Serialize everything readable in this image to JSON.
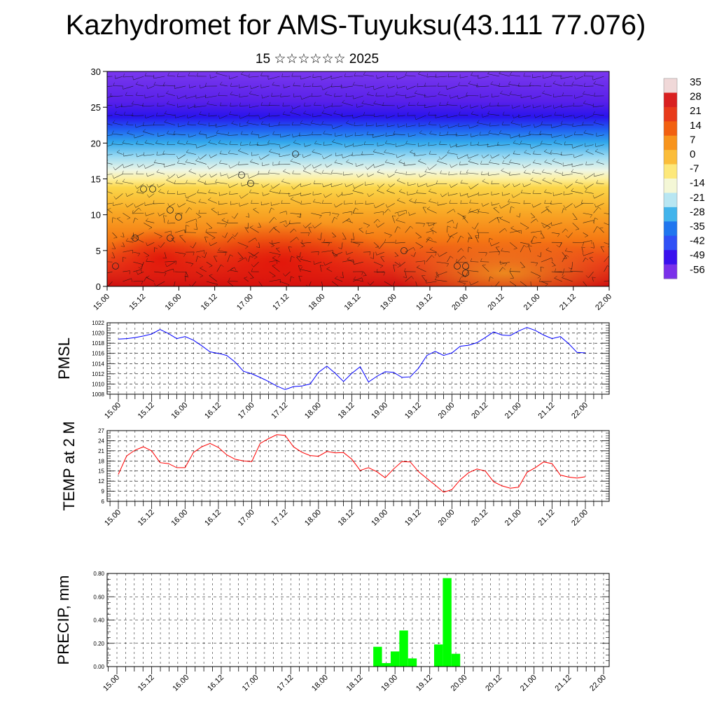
{
  "title": "Kazhydromet for AMS-Tuyuksu(43.111 77.076)",
  "subtitle": "15 ☆☆☆☆☆☆ 2025",
  "chart_data": [
    {
      "type": "heatmap",
      "name": "vertical-profile",
      "x_ticks": [
        "15.00",
        "15.12",
        "16.00",
        "16.12",
        "17.00",
        "17.12",
        "18.00",
        "18.12",
        "19.00",
        "19.12",
        "20.00",
        "20.12",
        "21.00",
        "21.12",
        "22.00"
      ],
      "ylim": [
        0,
        30
      ],
      "y_ticks": [
        "0",
        "5",
        "10",
        "15",
        "20",
        "25",
        "30"
      ],
      "colorbar": {
        "labels": [
          "35",
          "28",
          "21",
          "14",
          "7",
          "0",
          "-7",
          "-14",
          "-21",
          "-28",
          "-35",
          "-42",
          "-49",
          "-56"
        ],
        "colors": [
          "#f0d8d8",
          "#d92020",
          "#e83a1a",
          "#f26010",
          "#f8941c",
          "#fbbd3a",
          "#fde87a",
          "#f4f7d6",
          "#b8e6f2",
          "#42b4ec",
          "#2076ef",
          "#3050f6",
          "#3a10ee",
          "#7a30ea"
        ]
      }
    },
    {
      "type": "line",
      "name": "pmsl",
      "ylabel": "PMSL",
      "ylim": [
        1008,
        1022
      ],
      "y_ticks": [
        "1022",
        "1020",
        "1018",
        "1016",
        "1014",
        "1012",
        "1010",
        "1008"
      ],
      "x_ticks": [
        "15.00",
        "15.12",
        "16.00",
        "16.12",
        "17.00",
        "17.12",
        "18.00",
        "18.12",
        "19.00",
        "19.12",
        "20.00",
        "20.12",
        "21.00",
        "21.12",
        "22.00"
      ],
      "color": "#0000ff",
      "values": [
        1018.8,
        1018.9,
        1019.1,
        1019.4,
        1019.8,
        1020.7,
        1019.9,
        1018.9,
        1019.3,
        1018.6,
        1017.5,
        1016.3,
        1016.0,
        1015.6,
        1014.3,
        1012.5,
        1012.0,
        1011.3,
        1010.5,
        1009.6,
        1008.9,
        1009.5,
        1009.6,
        1010.0,
        1012.3,
        1013.5,
        1012.1,
        1010.5,
        1012.1,
        1013.4,
        1010.4,
        1011.5,
        1012.4,
        1012.3,
        1011.3,
        1011.4,
        1013.1,
        1015.6,
        1016.4,
        1015.6,
        1016.1,
        1017.4,
        1017.6,
        1018.1,
        1019.1,
        1020.2,
        1019.6,
        1019.5,
        1020.4,
        1021.1,
        1020.5,
        1019.6,
        1018.9,
        1019.3,
        1017.9,
        1016.2,
        1016.1
      ]
    },
    {
      "type": "line",
      "name": "temp-2m",
      "ylabel": "TEMP at 2 M",
      "ylim": [
        6,
        27
      ],
      "y_ticks": [
        "27",
        "24",
        "21",
        "18",
        "15",
        "12",
        "9",
        "6"
      ],
      "x_ticks": [
        "15.00",
        "15.12",
        "16.00",
        "16.12",
        "17.00",
        "17.12",
        "18.00",
        "18.12",
        "19.00",
        "19.12",
        "20.00",
        "20.12",
        "21.00",
        "21.12",
        "22.00"
      ],
      "color": "#ff0000",
      "values": [
        14.0,
        19.5,
        21.2,
        22.2,
        21.0,
        17.5,
        17.2,
        16.0,
        16.0,
        20.5,
        22.2,
        23.2,
        22.0,
        19.8,
        18.5,
        18.0,
        17.8,
        23.2,
        24.6,
        25.8,
        25.6,
        22.2,
        20.6,
        19.6,
        19.4,
        20.8,
        20.4,
        20.5,
        18.5,
        15.2,
        16.0,
        14.8,
        13.0,
        15.6,
        17.8,
        17.7,
        14.8,
        12.8,
        10.8,
        8.7,
        9.5,
        12.4,
        14.5,
        15.6,
        15.0,
        11.8,
        10.6,
        9.9,
        10.2,
        14.6,
        16.0,
        17.7,
        17.2,
        13.8,
        13.2,
        12.9,
        13.3
      ]
    },
    {
      "type": "bar",
      "name": "precip",
      "ylabel": "PRECIP, mm",
      "ylim": [
        0,
        0.8
      ],
      "y_ticks": [
        "0.80",
        "0.60",
        "0.40",
        "0.20",
        "0.00"
      ],
      "x_ticks": [
        "15.00",
        "15.12",
        "16.00",
        "16.12",
        "17.00",
        "17.12",
        "18.00",
        "18.12",
        "19.00",
        "19.12",
        "20.00",
        "20.12",
        "21.00",
        "21.12",
        "22.00"
      ],
      "color": "#00ff00",
      "values": [
        0,
        0,
        0,
        0,
        0,
        0,
        0,
        0,
        0,
        0,
        0,
        0,
        0,
        0,
        0,
        0,
        0,
        0,
        0,
        0,
        0,
        0,
        0,
        0,
        0,
        0,
        0,
        0,
        0,
        0,
        0.17,
        0.03,
        0.13,
        0.31,
        0.07,
        0,
        0,
        0.19,
        0.76,
        0.11,
        0,
        0,
        0,
        0,
        0,
        0,
        0,
        0,
        0,
        0,
        0,
        0,
        0,
        0,
        0,
        0,
        0
      ]
    }
  ]
}
